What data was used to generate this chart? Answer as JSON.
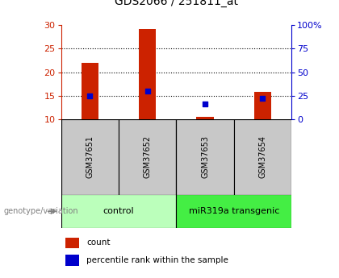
{
  "title": "GDS2066 / 251811_at",
  "samples": [
    "GSM37651",
    "GSM37652",
    "GSM37653",
    "GSM37654"
  ],
  "count_values": [
    22.0,
    29.2,
    10.5,
    15.8
  ],
  "percentile_values": [
    15.0,
    16.0,
    13.3,
    14.5
  ],
  "bar_bottom": 10,
  "ylim_left": [
    10,
    30
  ],
  "ylim_right": [
    0,
    100
  ],
  "yticks_left": [
    10,
    15,
    20,
    25,
    30
  ],
  "yticks_right": [
    0,
    25,
    50,
    75,
    100
  ],
  "yticklabels_right": [
    "0",
    "25",
    "50",
    "75",
    "100%"
  ],
  "left_axis_color": "#CC2200",
  "right_axis_color": "#0000CC",
  "bar_color": "#CC2200",
  "dot_color": "#0000CC",
  "grid_color": "#000000",
  "bg_color": "#FFFFFF",
  "sample_box_color": "#C8C8C8",
  "control_color": "#BBFFBB",
  "transgenic_color": "#44EE44",
  "genotype_label": "genotype/variation",
  "legend_count": "count",
  "legend_percentile": "percentile rank within the sample",
  "title_fontsize": 10,
  "axis_fontsize": 8,
  "sample_fontsize": 7,
  "group_fontsize": 8,
  "legend_fontsize": 7.5
}
